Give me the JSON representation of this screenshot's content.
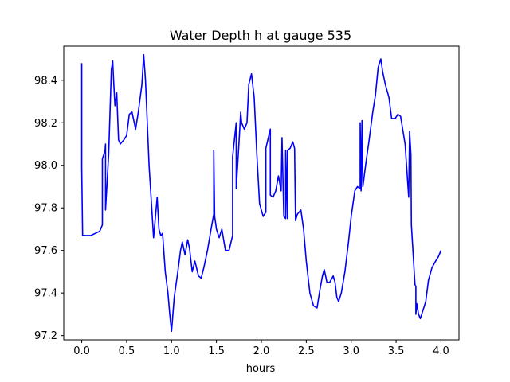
{
  "chart_data": {
    "type": "line",
    "title": "Water Depth h at gauge 535",
    "xlabel": "hours",
    "ylabel": "",
    "xlim": [
      -0.2,
      4.2
    ],
    "ylim": [
      97.18,
      98.56
    ],
    "x_ticks": [
      0,
      0.5,
      1,
      1.5,
      2,
      2.5,
      3,
      3.5,
      4
    ],
    "x_tick_labels": [
      "0.0",
      "0.5",
      "1.0",
      "1.5",
      "2.0",
      "2.5",
      "3.0",
      "3.5",
      "4.0"
    ],
    "y_ticks": [
      97.2,
      97.4,
      97.6,
      97.8,
      98.0,
      98.2,
      98.4
    ],
    "y_tick_labels": [
      "97.2",
      "97.4",
      "97.6",
      "97.8",
      "98.0",
      "98.2",
      "98.4"
    ],
    "grid": false,
    "legend": "none",
    "series": [
      {
        "color": "#0000ff",
        "points": [
          [
            0.0,
            98.48
          ],
          [
            0.0,
            97.99
          ],
          [
            0.01,
            97.67
          ],
          [
            0.1,
            97.67
          ],
          [
            0.15,
            97.68
          ],
          [
            0.2,
            97.69
          ],
          [
            0.23,
            97.72
          ],
          [
            0.23,
            98.03
          ],
          [
            0.26,
            98.07
          ],
          [
            0.265,
            98.1
          ],
          [
            0.265,
            97.79
          ],
          [
            0.3,
            98.05
          ],
          [
            0.33,
            98.45
          ],
          [
            0.345,
            98.49
          ],
          [
            0.355,
            98.4
          ],
          [
            0.37,
            98.28
          ],
          [
            0.39,
            98.34
          ],
          [
            0.41,
            98.12
          ],
          [
            0.43,
            98.1
          ],
          [
            0.47,
            98.12
          ],
          [
            0.5,
            98.14
          ],
          [
            0.53,
            98.24
          ],
          [
            0.56,
            98.25
          ],
          [
            0.6,
            98.17
          ],
          [
            0.63,
            98.25
          ],
          [
            0.67,
            98.38
          ],
          [
            0.69,
            98.52
          ],
          [
            0.71,
            98.4
          ],
          [
            0.75,
            98.0
          ],
          [
            0.8,
            97.66
          ],
          [
            0.84,
            97.85
          ],
          [
            0.86,
            97.7
          ],
          [
            0.88,
            97.67
          ],
          [
            0.9,
            97.68
          ],
          [
            0.93,
            97.5
          ],
          [
            0.96,
            97.4
          ],
          [
            0.98,
            97.3
          ],
          [
            1.0,
            97.22
          ],
          [
            1.03,
            97.38
          ],
          [
            1.07,
            97.5
          ],
          [
            1.1,
            97.6
          ],
          [
            1.12,
            97.64
          ],
          [
            1.15,
            97.58
          ],
          [
            1.18,
            97.65
          ],
          [
            1.2,
            97.61
          ],
          [
            1.23,
            97.5
          ],
          [
            1.26,
            97.55
          ],
          [
            1.3,
            97.48
          ],
          [
            1.33,
            97.47
          ],
          [
            1.36,
            97.52
          ],
          [
            1.4,
            97.6
          ],
          [
            1.44,
            97.7
          ],
          [
            1.47,
            97.77
          ],
          [
            1.47,
            98.07
          ],
          [
            1.48,
            97.76
          ],
          [
            1.5,
            97.7
          ],
          [
            1.53,
            97.66
          ],
          [
            1.56,
            97.7
          ],
          [
            1.6,
            97.6
          ],
          [
            1.64,
            97.6
          ],
          [
            1.68,
            97.67
          ],
          [
            1.68,
            98.04
          ],
          [
            1.72,
            98.2
          ],
          [
            1.72,
            97.89
          ],
          [
            1.75,
            98.1
          ],
          [
            1.77,
            98.25
          ],
          [
            1.78,
            98.2
          ],
          [
            1.81,
            98.17
          ],
          [
            1.84,
            98.2
          ],
          [
            1.86,
            98.38
          ],
          [
            1.89,
            98.43
          ],
          [
            1.92,
            98.32
          ],
          [
            1.95,
            98.05
          ],
          [
            1.98,
            97.82
          ],
          [
            2.02,
            97.76
          ],
          [
            2.05,
            97.78
          ],
          [
            2.05,
            98.08
          ],
          [
            2.1,
            98.17
          ],
          [
            2.1,
            97.86
          ],
          [
            2.13,
            97.85
          ],
          [
            2.16,
            97.88
          ],
          [
            2.19,
            97.95
          ],
          [
            2.22,
            97.88
          ],
          [
            2.23,
            98.13
          ],
          [
            2.25,
            97.76
          ],
          [
            2.27,
            97.75
          ],
          [
            2.27,
            98.07
          ],
          [
            2.29,
            97.75
          ],
          [
            2.29,
            98.07
          ],
          [
            2.32,
            98.08
          ],
          [
            2.35,
            98.11
          ],
          [
            2.37,
            98.08
          ],
          [
            2.38,
            97.74
          ],
          [
            2.4,
            97.77
          ],
          [
            2.44,
            97.79
          ],
          [
            2.47,
            97.7
          ],
          [
            2.5,
            97.55
          ],
          [
            2.54,
            97.4
          ],
          [
            2.58,
            97.34
          ],
          [
            2.62,
            97.33
          ],
          [
            2.65,
            97.41
          ],
          [
            2.68,
            97.48
          ],
          [
            2.7,
            97.51
          ],
          [
            2.73,
            97.45
          ],
          [
            2.76,
            97.45
          ],
          [
            2.8,
            97.48
          ],
          [
            2.82,
            97.45
          ],
          [
            2.84,
            97.38
          ],
          [
            2.86,
            97.36
          ],
          [
            2.89,
            97.4
          ],
          [
            2.93,
            97.5
          ],
          [
            2.97,
            97.64
          ],
          [
            3.0,
            97.76
          ],
          [
            3.04,
            97.88
          ],
          [
            3.07,
            97.9
          ],
          [
            3.1,
            97.89
          ],
          [
            3.1,
            98.2
          ],
          [
            3.11,
            97.88
          ],
          [
            3.12,
            98.21
          ],
          [
            3.13,
            97.9
          ],
          [
            3.16,
            98.0
          ],
          [
            3.2,
            98.12
          ],
          [
            3.24,
            98.25
          ],
          [
            3.27,
            98.33
          ],
          [
            3.3,
            98.46
          ],
          [
            3.33,
            98.5
          ],
          [
            3.35,
            98.44
          ],
          [
            3.38,
            98.38
          ],
          [
            3.42,
            98.32
          ],
          [
            3.45,
            98.22
          ],
          [
            3.49,
            98.22
          ],
          [
            3.52,
            98.24
          ],
          [
            3.55,
            98.23
          ],
          [
            3.6,
            98.1
          ],
          [
            3.64,
            97.85
          ],
          [
            3.65,
            98.16
          ],
          [
            3.665,
            98.05
          ],
          [
            3.67,
            97.72
          ],
          [
            3.71,
            97.44
          ],
          [
            3.72,
            97.43
          ],
          [
            3.72,
            97.3
          ],
          [
            3.73,
            97.35
          ],
          [
            3.75,
            97.3
          ],
          [
            3.77,
            97.28
          ],
          [
            3.8,
            97.32
          ],
          [
            3.83,
            97.36
          ],
          [
            3.86,
            97.46
          ],
          [
            3.9,
            97.52
          ],
          [
            3.94,
            97.55
          ],
          [
            3.97,
            97.57
          ],
          [
            4.0,
            97.6
          ]
        ]
      }
    ]
  }
}
